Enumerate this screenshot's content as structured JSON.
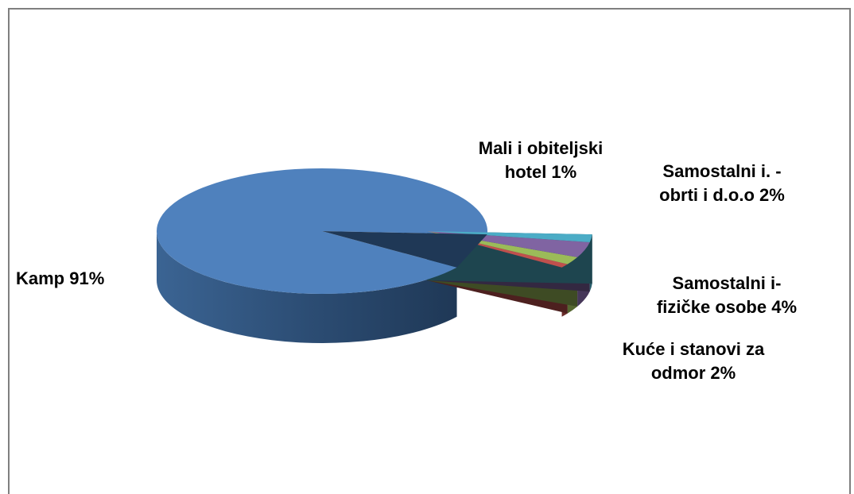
{
  "chart_data": {
    "type": "pie",
    "title": "",
    "three_d": true,
    "exploded_slices": [
      "Mali i obiteljski hotel",
      "Samostalni i. - obrti i d.o.o",
      "Samostalni i-fizičke osobe",
      "Kuće i stanovi za odmor"
    ],
    "series": [
      {
        "values": [
          {
            "category": "Kamp",
            "value": 91,
            "color": "#4f81bd",
            "label": [
              "Kamp 91%"
            ]
          },
          {
            "category": "Mali i obiteljski hotel",
            "value": 1,
            "color": "#c0504d",
            "label": [
              "Mali i obiteljski",
              "hotel 1%"
            ]
          },
          {
            "category": "Samostalni i. - obrti i d.o.o",
            "value": 2,
            "color": "#9bbb59",
            "label": [
              "Samostalni i. -",
              "obrti i d.o.o 2%"
            ]
          },
          {
            "category": "Samostalni i-fizičke osobe",
            "value": 4,
            "color": "#8064a2",
            "label": [
              "Samostalni i-",
              "fizičke osobe 4%"
            ]
          },
          {
            "category": "Kuće i stanovi za odmor",
            "value": 2,
            "color": "#4bacc6",
            "label": [
              "Kuće i stanovi za",
              "odmor 2%"
            ]
          }
        ]
      }
    ],
    "legend": "none"
  }
}
